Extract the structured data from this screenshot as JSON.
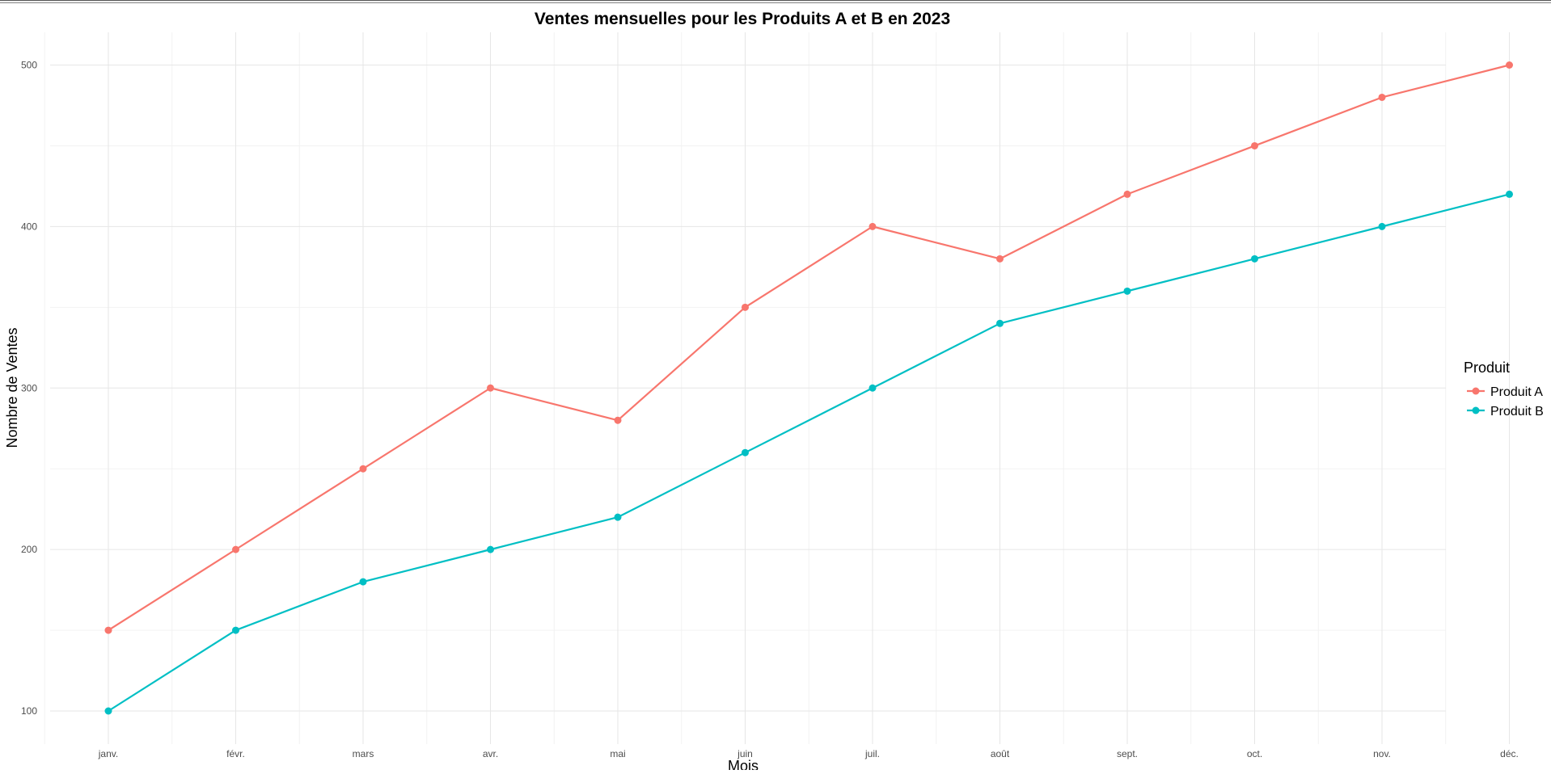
{
  "chart_data": {
    "type": "line",
    "title": "Ventes mensuelles pour les Produits A et B en 2023",
    "xlabel": "Mois",
    "ylabel": "Nombre de Ventes",
    "categories": [
      "janv.",
      "févr.",
      "mars",
      "avr.",
      "mai",
      "juin",
      "juil.",
      "août",
      "sept.",
      "oct.",
      "nov.",
      "déc."
    ],
    "ylim": [
      80,
      520
    ],
    "yticks": [
      "100",
      "200",
      "300",
      "400",
      "500"
    ],
    "grid": true,
    "legend": {
      "title": "Produit",
      "position": "right"
    },
    "series": [
      {
        "name": "Produit A",
        "color": "#F8766D",
        "values": [
          150,
          200,
          250,
          300,
          280,
          350,
          400,
          380,
          420,
          450,
          480,
          500
        ]
      },
      {
        "name": "Produit B",
        "color": "#00BFC4",
        "values": [
          100,
          150,
          180,
          200,
          220,
          260,
          300,
          340,
          360,
          380,
          400,
          420
        ]
      }
    ]
  }
}
